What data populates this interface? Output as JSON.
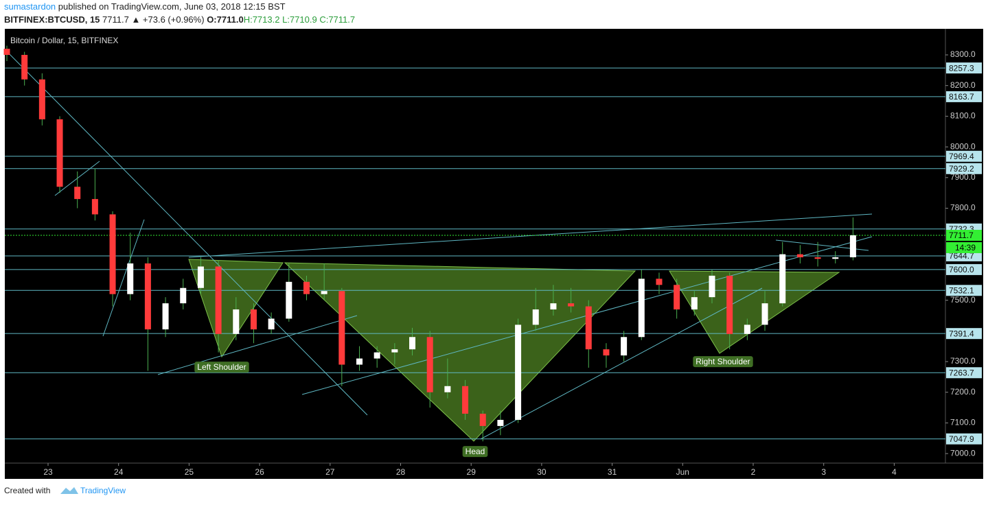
{
  "header": {
    "author": "sumastardon",
    "published": "published on TradingView.com, June 03, 2018 12:15 BST",
    "symbol": "BITFINEX:BTCUSD, 15",
    "last": "7711.7",
    "change": "▲ +73.6 (+0.96%)",
    "o": "O:7711.0",
    "h": "H:7713.2",
    "l": "L:7710.9",
    "c": "C:7711.7"
  },
  "footer": {
    "created": "Created with",
    "brand": "TradingView"
  },
  "chart_data": {
    "type": "candlestick",
    "title": "Bitcoin / Dollar, 15, BITFINEX",
    "up_color": "#ffffff",
    "down_color": "#ff3b3b",
    "wick_color": "#4caf50",
    "level_color": "#5fb8c4",
    "x_labels": [
      "23",
      "24",
      "25",
      "26",
      "27",
      "28",
      "29",
      "30",
      "31",
      "Jun",
      "2",
      "3",
      "4"
    ],
    "open": [
      8320,
      8300,
      8220,
      8090,
      7870,
      7830,
      7780,
      7520,
      7620,
      7405,
      7490,
      7540,
      7610,
      7390,
      7470,
      7405,
      7440,
      7560,
      7520,
      7530,
      7290,
      7310,
      7330,
      7340,
      7380,
      7200,
      7220,
      7130,
      7090,
      7110,
      7420,
      7470,
      7490,
      7480,
      7340,
      7320,
      7380,
      7570,
      7550,
      7470,
      7510,
      7580,
      7390,
      7420,
      7490,
      7650,
      7640,
      7635,
      7640
    ],
    "high": [
      8330,
      8310,
      8240,
      8100,
      7920,
      7930,
      7790,
      7720,
      7640,
      7510,
      7570,
      7640,
      7630,
      7510,
      7490,
      7460,
      7620,
      7580,
      7620,
      7540,
      7350,
      7350,
      7360,
      7410,
      7400,
      7310,
      7240,
      7140,
      7140,
      7440,
      7540,
      7550,
      7540,
      7500,
      7360,
      7400,
      7600,
      7590,
      7570,
      7530,
      7600,
      7590,
      7440,
      7530,
      7690,
      7680,
      7690,
      7660,
      7770
    ],
    "low": [
      8280,
      8200,
      8070,
      7850,
      7800,
      7760,
      7480,
      7500,
      7270,
      7380,
      7470,
      7520,
      7330,
      7370,
      7360,
      7390,
      7430,
      7500,
      7500,
      7220,
      7270,
      7280,
      7290,
      7320,
      7150,
      7180,
      7110,
      7040,
      7060,
      7100,
      7400,
      7450,
      7460,
      7280,
      7280,
      7300,
      7370,
      7520,
      7440,
      7450,
      7490,
      7340,
      7370,
      7400,
      7480,
      7620,
      7610,
      7620,
      7630
    ],
    "close": [
      8300,
      8220,
      8090,
      7870,
      7830,
      7780,
      7520,
      7620,
      7405,
      7490,
      7540,
      7610,
      7390,
      7470,
      7405,
      7440,
      7560,
      7520,
      7530,
      7290,
      7310,
      7330,
      7340,
      7380,
      7200,
      7220,
      7130,
      7090,
      7110,
      7420,
      7470,
      7490,
      7480,
      7340,
      7320,
      7380,
      7570,
      7550,
      7470,
      7510,
      7580,
      7390,
      7420,
      7490,
      7650,
      7640,
      7635,
      7640,
      7711.7
    ],
    "ylim": [
      6969,
      8385
    ],
    "yticks": [
      {
        "value": 8300,
        "label": "8300.0"
      },
      {
        "value": 8200,
        "label": "8200.0"
      },
      {
        "value": 8100,
        "label": "8100.0"
      },
      {
        "value": 8000,
        "label": "8000.0"
      },
      {
        "value": 7900,
        "label": "7900.0"
      },
      {
        "value": 7800,
        "label": "7800.0"
      },
      {
        "value": 7500,
        "label": "7500.0"
      },
      {
        "value": 7300,
        "label": "7300.0"
      },
      {
        "value": 7200,
        "label": "7200.0"
      },
      {
        "value": 7100,
        "label": "7100.0"
      },
      {
        "value": 7000,
        "label": "7000.0"
      }
    ],
    "levels": [
      8257.3,
      8163.7,
      7969.4,
      7929.2,
      7732.3,
      7644.7,
      {
        "value": 7600,
        "label": "7600.0"
      },
      7532.1,
      7391.4,
      7263.7,
      7047.9
    ],
    "current_price": 7711.7,
    "current_color": "#33ee33",
    "countdown": "14:39",
    "annotations": [
      "Left Shoulder",
      "Head",
      "Right Shoulder"
    ]
  }
}
